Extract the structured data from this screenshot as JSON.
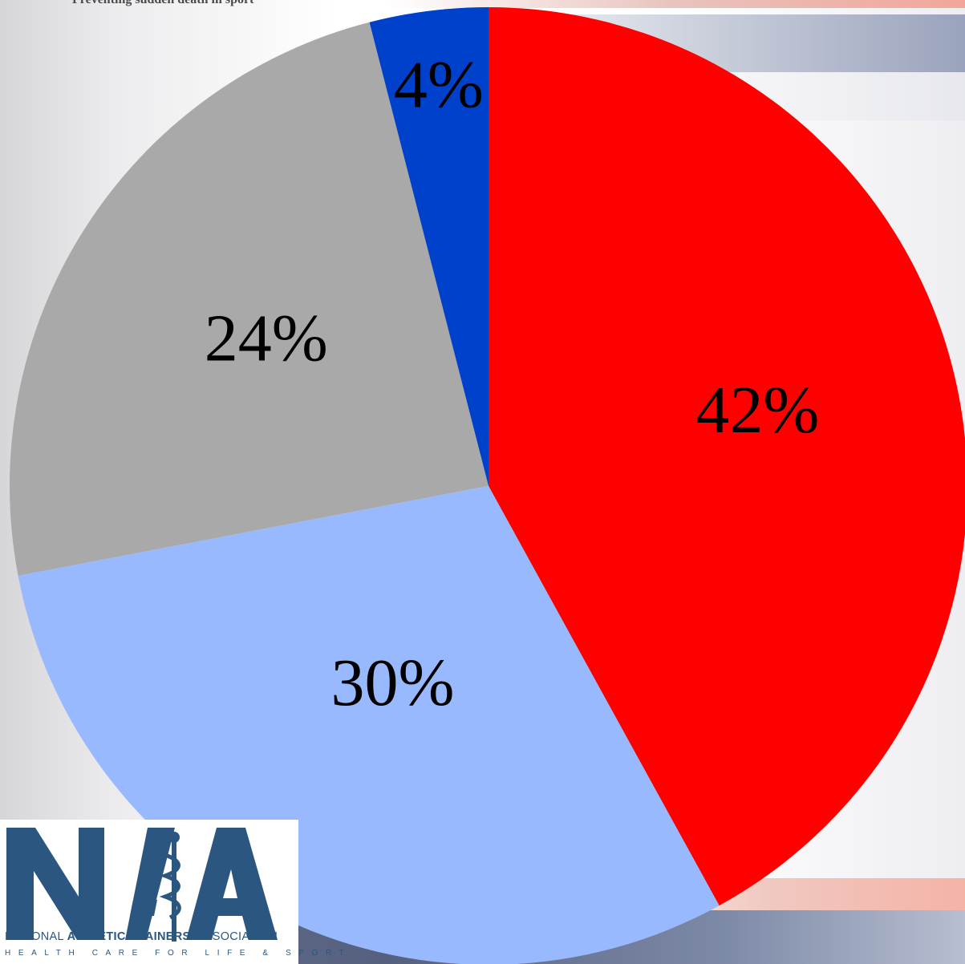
{
  "header": {
    "tagline": "Preventing sudden death in sport"
  },
  "chart_data": {
    "type": "pie",
    "start_angle_deg": 0,
    "direction": "clockwise",
    "slices": [
      {
        "label": "42%",
        "value": 42,
        "color": "#ff0000"
      },
      {
        "label": "30%",
        "value": 30,
        "color": "#99b9ff"
      },
      {
        "label": "24%",
        "value": 24,
        "color": "#a9a9a9"
      },
      {
        "label": "4%",
        "value": 4,
        "color": "#0041cc"
      }
    ],
    "legend": "none",
    "title": ""
  },
  "logo": {
    "name": "NATA",
    "line1_part1": "NATIONAL ",
    "line1_bold": "ATHLETIC TRAINERS'",
    "line1_part2": " ASSOCIATION",
    "line2": "HEALTH CARE FOR LIFE & SPORT",
    "color": "#2a5680"
  }
}
